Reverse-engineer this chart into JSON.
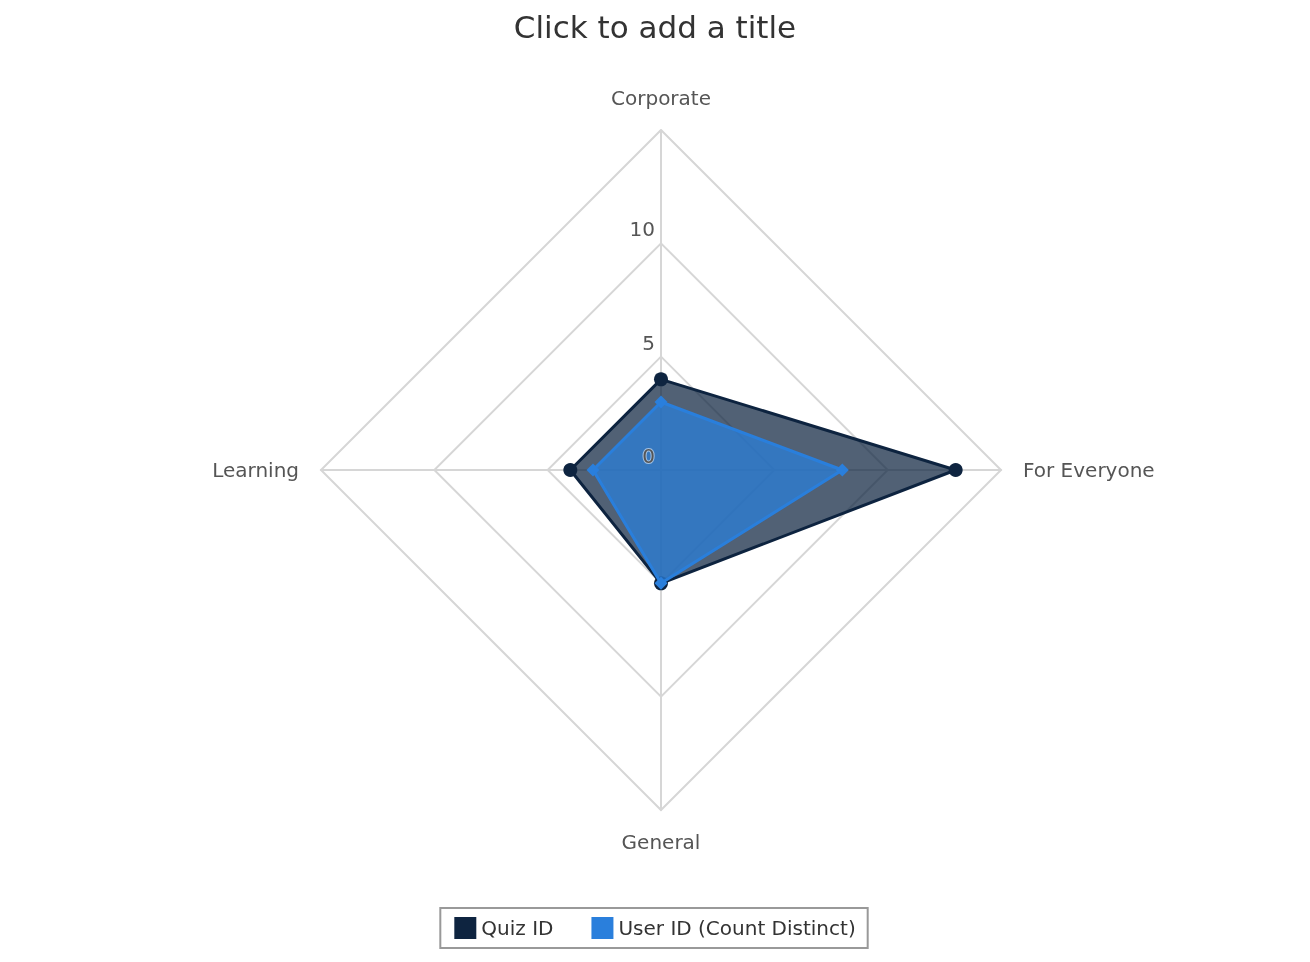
{
  "chart_data": {
    "type": "radar",
    "title": "Click to add a title",
    "categories": [
      "Corporate",
      "For Everyone",
      "General",
      "Learning"
    ],
    "series": [
      {
        "name": "Quiz ID",
        "color": "#0e2440",
        "values": [
          4,
          13,
          5,
          4
        ],
        "marker": "circle"
      },
      {
        "name": "User ID (Count Distinct)",
        "color": "#2a7fdc",
        "values": [
          3,
          8,
          5,
          3
        ],
        "marker": "diamond"
      }
    ],
    "ylim": [
      0,
      15
    ],
    "yticks": [
      0,
      5,
      10
    ],
    "grid": true,
    "legend": "bottom",
    "line_style": "solid"
  }
}
